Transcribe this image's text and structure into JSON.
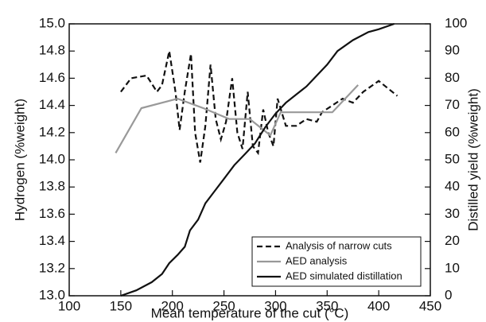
{
  "chart_data": {
    "type": "line",
    "xlabel": "Mean temperature of the cut (°C)",
    "ylabel": "Hydrogen (%weight)",
    "y2label": "Distilled yield (%weight)",
    "xlim": [
      100,
      450
    ],
    "xticks": [
      100,
      150,
      200,
      250,
      300,
      350,
      400,
      450
    ],
    "ylim": [
      13.0,
      15.0
    ],
    "yticks": [
      {
        "value": 13.0,
        "label": "13.0"
      },
      13.2,
      13.4,
      13.6,
      13.8,
      {
        "value": 14.0,
        "label": "14.0"
      },
      14.2,
      14.4,
      14.6,
      14.8,
      {
        "value": 15.0,
        "label": "15.0"
      }
    ],
    "y2lim": [
      0,
      100
    ],
    "y2ticks": [
      0,
      10,
      20,
      30,
      40,
      50,
      60,
      70,
      80,
      90,
      100
    ],
    "legend": "lower right",
    "series": [
      {
        "name": "Analysis of narrow cuts",
        "color": "#111111",
        "linestyle": "dashed",
        "x": [
          150,
          160,
          175,
          185,
          190,
          197,
          203,
          207,
          212,
          218,
          222,
          227,
          232,
          237,
          242,
          247,
          252,
          258,
          263,
          268,
          273,
          278,
          283,
          288,
          293,
          298,
          302,
          310,
          320,
          330,
          340,
          345,
          355,
          365,
          375,
          385,
          400,
          418
        ],
        "values": [
          14.5,
          14.6,
          14.62,
          14.5,
          14.55,
          14.8,
          14.5,
          14.22,
          14.5,
          14.78,
          14.2,
          13.98,
          14.25,
          14.7,
          14.3,
          14.15,
          14.28,
          14.6,
          14.2,
          14.08,
          14.5,
          14.1,
          14.05,
          14.37,
          14.2,
          14.1,
          14.45,
          14.25,
          14.25,
          14.3,
          14.28,
          14.35,
          14.4,
          14.45,
          14.42,
          14.5,
          14.58,
          14.47
        ]
      },
      {
        "name": "AED analysis",
        "color": "#999999",
        "linestyle": "solid",
        "x": [
          145,
          170,
          205,
          230,
          255,
          275,
          295,
          305,
          355,
          380
        ],
        "values": [
          14.05,
          14.38,
          14.45,
          14.38,
          14.3,
          14.3,
          14.18,
          14.35,
          14.35,
          14.55
        ]
      },
      {
        "name": "AED simulated distillation",
        "color": "#111111",
        "linestyle": "solid",
        "axis": "y2",
        "x": [
          150,
          165,
          180,
          190,
          197,
          205,
          212,
          217,
          225,
          232,
          240,
          250,
          260,
          270,
          280,
          290,
          300,
          310,
          320,
          330,
          340,
          350,
          360,
          375,
          390,
          400,
          415
        ],
        "values": [
          0,
          2,
          5,
          8,
          12,
          15,
          18,
          24,
          28,
          34,
          38,
          43,
          48,
          52,
          56,
          62,
          67,
          71,
          74,
          77,
          81,
          85,
          90,
          94,
          97,
          98,
          100
        ]
      }
    ]
  }
}
